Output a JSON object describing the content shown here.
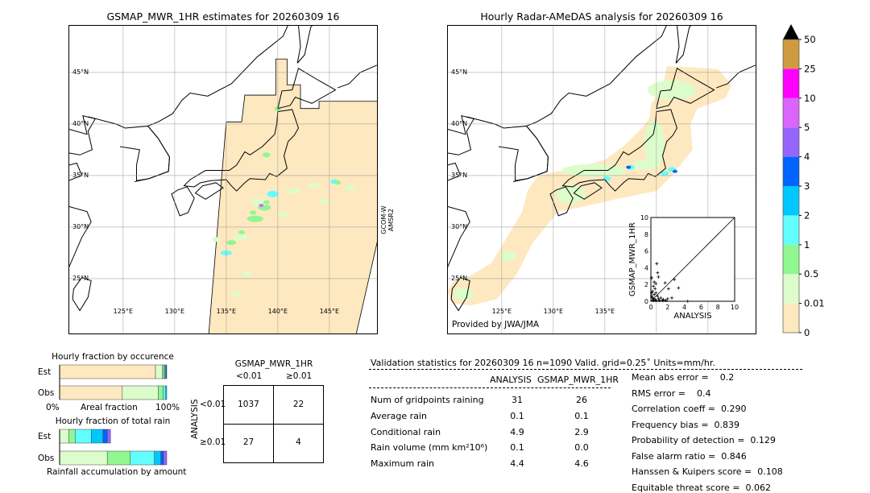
{
  "left_map": {
    "title": "GSMAP_MWR_1HR estimates for 20260309 16",
    "lat_labels": [
      "45°N",
      "40°N",
      "35°N",
      "30°N",
      "25°N"
    ],
    "lon_labels": [
      "125°E",
      "130°E",
      "135°E",
      "140°E",
      "145°E"
    ],
    "side_label_1": "GCOM-W",
    "side_label_2": "AMSR2"
  },
  "right_map": {
    "title": "Hourly Radar-AMeDAS analysis for 20260309 16",
    "lat_labels": [
      "45°N",
      "40°N",
      "35°N",
      "30°N",
      "25°N"
    ],
    "lon_labels": [
      "125°E",
      "130°E",
      "135°E"
    ],
    "credit": "Provided by JWA/JMA"
  },
  "colorbar": {
    "ticks": [
      "0",
      "0.01",
      "0.5",
      "1",
      "2",
      "3",
      "4",
      "5",
      "10",
      "25",
      "50"
    ],
    "colors": [
      "#fee8c0",
      "#dcfdcb",
      "#90f790",
      "#62fefe",
      "#00c8ff",
      "#0064ff",
      "#9664fe",
      "#dc64fe",
      "#ff00ff",
      "#d09a40"
    ],
    "extend_color": "#000000"
  },
  "chart_data": [
    {
      "type": "scatter",
      "xlabel": "ANALYSIS",
      "ylabel": "GSMAP_MWR_1HR",
      "xlim": [
        0,
        10
      ],
      "ylim": [
        0,
        10
      ],
      "xticks": [
        "0",
        "2",
        "4",
        "6",
        "8",
        "10"
      ],
      "yticks": [
        "0",
        "2",
        "4",
        "6",
        "8",
        "10"
      ],
      "diagonal": true,
      "points": [
        [
          0.7,
          4.5
        ],
        [
          0.8,
          3.4
        ],
        [
          0.9,
          2.9
        ],
        [
          0.1,
          2.8
        ],
        [
          0.4,
          2.3
        ],
        [
          0.6,
          2.1
        ],
        [
          1.7,
          2.2
        ],
        [
          2.8,
          2.6
        ],
        [
          3.3,
          1.6
        ],
        [
          2.1,
          1.5
        ],
        [
          0.3,
          1.8
        ],
        [
          0.5,
          1.5
        ],
        [
          0.2,
          1.2
        ],
        [
          0.6,
          1.0
        ],
        [
          0.4,
          0.8
        ],
        [
          0.1,
          0.6
        ],
        [
          0.2,
          0.4
        ],
        [
          0.9,
          0.3
        ],
        [
          1.2,
          0.4
        ],
        [
          1.5,
          0.2
        ],
        [
          2.0,
          0.3
        ],
        [
          2.5,
          0.4
        ],
        [
          0.3,
          0.1
        ],
        [
          0.6,
          0.1
        ],
        [
          1.0,
          0.1
        ],
        [
          1.4,
          0.1
        ],
        [
          0.8,
          0.6
        ],
        [
          0.1,
          1.0
        ],
        [
          0.3,
          0.3
        ],
        [
          4.4,
          0.0
        ],
        [
          1.8,
          0.1
        ],
        [
          0.5,
          0.2
        ]
      ]
    },
    {
      "type": "bar",
      "title": "Hourly fraction by occurence",
      "categories": [
        "Est",
        "Obs"
      ],
      "xlabel": "Areal fraction",
      "xtick_left": "0%",
      "xtick_right": "100%",
      "segments": {
        "Est": [
          89.5,
          6.5,
          1.5,
          1.0,
          0.8,
          0.7
        ],
        "Obs": [
          58.5,
          33.5,
          4.5,
          2.5,
          1.0,
          0
        ]
      }
    },
    {
      "type": "bar",
      "title": "Hourly fraction of total rain",
      "categories": [
        "Est",
        "Obs"
      ],
      "xlabel": "Rainfall accumulation by amount",
      "segments": {
        "Est": [
          0,
          8.5,
          6,
          15,
          11,
          4,
          3
        ],
        "Obs": [
          0,
          44.5,
          21.5,
          22.5,
          6,
          2.5,
          3
        ]
      }
    },
    {
      "type": "table",
      "title": "GSMAP_MWR_1HR",
      "col_labels": [
        "<0.01",
        "≥0.01"
      ],
      "row_title": "ANALYSIS",
      "row_labels": [
        "<0.01",
        "≥0.01"
      ],
      "cells": [
        [
          "1037",
          "22"
        ],
        [
          "27",
          "4"
        ]
      ]
    }
  ],
  "stats": {
    "header": "Validation statistics for 20260309 16  n=1090 Valid. grid=0.25˚ Units=mm/hr.",
    "col_analysis": "ANALYSIS",
    "col_gsmap": "GSMAP_MWR_1HR",
    "rows": [
      {
        "label": "Num of gridpoints raining",
        "a": "31",
        "g": "26"
      },
      {
        "label": "Average rain",
        "a": "0.1",
        "g": "0.1"
      },
      {
        "label": "Conditional rain",
        "a": "4.9",
        "g": "2.9"
      },
      {
        "label": "Rain volume (mm km²10⁶)",
        "a": "0.1",
        "g": "0.0"
      },
      {
        "label": "Maximum rain",
        "a": "4.4",
        "g": "4.6"
      }
    ],
    "scores": [
      "Mean abs error =    0.2",
      "RMS error =    0.4",
      "Correlation coeff =  0.290",
      "Frequency bias =  0.839",
      "Probability of detection =  0.129",
      "False alarm ratio =  0.846",
      "Hanssen & Kuipers score =  0.108",
      "Equitable threat score =  0.062"
    ]
  }
}
